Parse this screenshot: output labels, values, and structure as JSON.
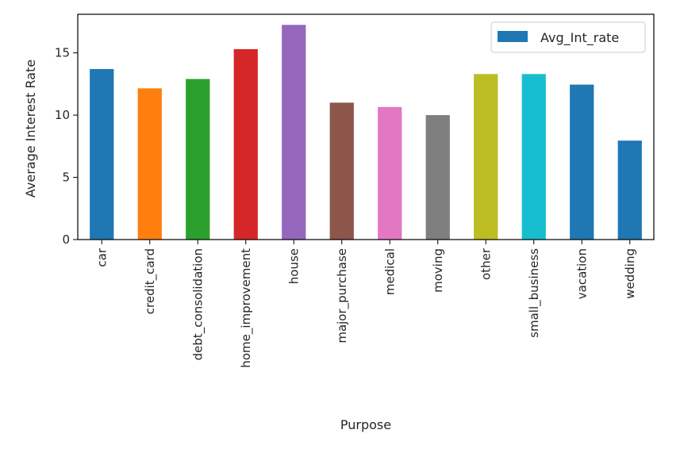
{
  "chart_data": {
    "type": "bar",
    "title": "",
    "xlabel": "Purpose",
    "ylabel": "Average Interest Rate",
    "categories": [
      "car",
      "credit_card",
      "debt_consolidation",
      "home_improvement",
      "house",
      "major_purchase",
      "medical",
      "moving",
      "other",
      "small_business",
      "vacation",
      "wedding"
    ],
    "series": [
      {
        "name": "Avg_Int_rate",
        "values": [
          13.7,
          12.15,
          12.9,
          15.3,
          17.25,
          11.0,
          10.65,
          10.0,
          13.3,
          13.3,
          12.45,
          7.95
        ]
      }
    ],
    "bar_colors": [
      "#1f77b4",
      "#ff7f0e",
      "#2ca02c",
      "#d62728",
      "#9467bd",
      "#8c564b",
      "#e377c2",
      "#7f7f7f",
      "#bcbd22",
      "#17becf",
      "#1f77b4",
      "#1f77b4"
    ],
    "legend_color": "#1f77b4",
    "yticks": [
      0,
      5,
      10,
      15
    ],
    "ylim": [
      0,
      18.1
    ],
    "legend_position": "top-right",
    "grid": false
  }
}
